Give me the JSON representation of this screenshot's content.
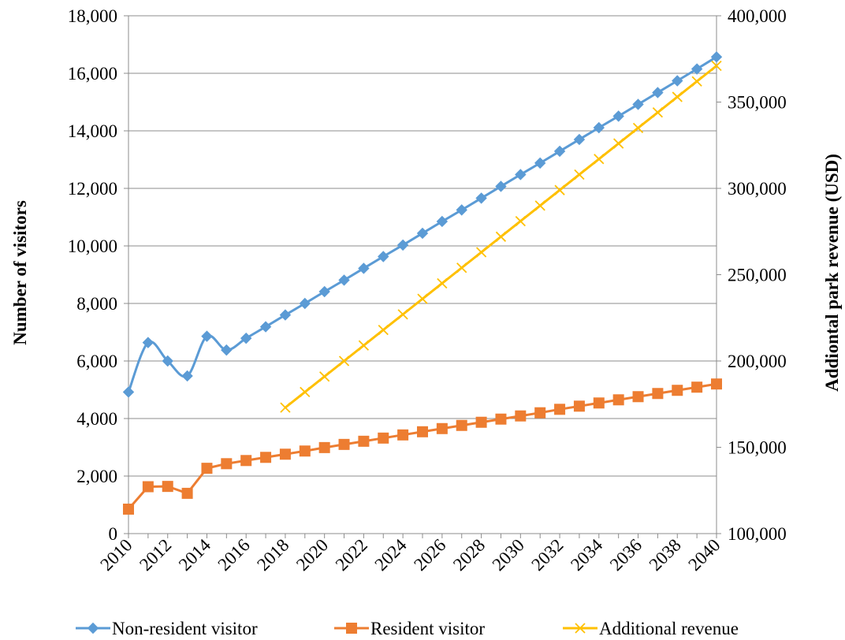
{
  "chart_data": {
    "type": "line",
    "title": "",
    "xlabel": "",
    "ylabel": "Number of visitors",
    "y2label": "Addiontal park revenue (USD)",
    "x": [
      2010,
      2011,
      2012,
      2013,
      2014,
      2015,
      2016,
      2017,
      2018,
      2019,
      2020,
      2021,
      2022,
      2023,
      2024,
      2025,
      2026,
      2027,
      2028,
      2029,
      2030,
      2031,
      2032,
      2033,
      2034,
      2035,
      2036,
      2037,
      2038,
      2039,
      2040
    ],
    "xtick_labels": [
      "2010",
      "2012",
      "2014",
      "2016",
      "2018",
      "2020",
      "2022",
      "2024",
      "2026",
      "2028",
      "2030",
      "2032",
      "2034",
      "2036",
      "2038",
      "2040"
    ],
    "ylim": [
      0,
      18000
    ],
    "yticks": [
      0,
      2000,
      4000,
      6000,
      8000,
      10000,
      12000,
      14000,
      16000,
      18000
    ],
    "ytick_labels": [
      "0",
      "2,000",
      "4,000",
      "6,000",
      "8,000",
      "10,000",
      "12,000",
      "14,000",
      "16,000",
      "18,000"
    ],
    "y2lim": [
      100000,
      400000
    ],
    "y2ticks": [
      100000,
      150000,
      200000,
      250000,
      300000,
      350000,
      400000
    ],
    "y2tick_labels": [
      "100,000",
      "150,000",
      "200,000",
      "250,000",
      "300,000",
      "350,000",
      "400,000"
    ],
    "grid": true,
    "legend": "bottom",
    "series": [
      {
        "name": "Non-resident visitor",
        "axis": "left",
        "color": "#5B9BD5",
        "marker": "diamond",
        "smooth": true,
        "values": [
          4920,
          6640,
          6000,
          5480,
          6860,
          6380,
          6790,
          7190,
          7600,
          8000,
          8410,
          8810,
          9220,
          9630,
          10030,
          10440,
          10850,
          11250,
          11660,
          12070,
          12480,
          12880,
          13290,
          13700,
          14110,
          14510,
          14920,
          15330,
          15740,
          16150,
          16570
        ]
      },
      {
        "name": "Resident visitor",
        "axis": "left",
        "color": "#ED7D31",
        "marker": "square",
        "smooth": false,
        "values": [
          850,
          1630,
          1640,
          1400,
          2270,
          2430,
          2540,
          2650,
          2760,
          2870,
          2990,
          3100,
          3210,
          3320,
          3430,
          3540,
          3650,
          3760,
          3870,
          3980,
          4090,
          4200,
          4320,
          4430,
          4540,
          4650,
          4760,
          4870,
          4980,
          5090,
          5200
        ]
      },
      {
        "name": "Additional revenue",
        "axis": "right",
        "color": "#FFC000",
        "marker": "x",
        "smooth": false,
        "x": [
          2018,
          2019,
          2020,
          2021,
          2022,
          2023,
          2024,
          2025,
          2026,
          2027,
          2028,
          2029,
          2030,
          2031,
          2032,
          2033,
          2034,
          2035,
          2036,
          2037,
          2038,
          2039,
          2040
        ],
        "values": [
          173000,
          182000,
          191000,
          200000,
          209000,
          218000,
          227000,
          236000,
          245000,
          254000,
          263000,
          272000,
          281000,
          290000,
          299000,
          308000,
          317000,
          326000,
          335000,
          344000,
          353000,
          362000,
          371000
        ]
      }
    ]
  }
}
